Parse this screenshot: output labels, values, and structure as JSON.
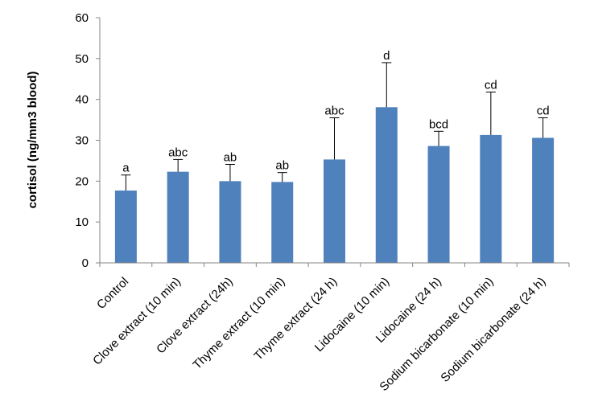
{
  "chart_data": {
    "type": "bar",
    "title": "",
    "xlabel": "",
    "ylabel": "cortisol (ng/mm3 blood)",
    "ylim": [
      0,
      60
    ],
    "yticks": [
      0,
      10,
      20,
      30,
      40,
      50,
      60
    ],
    "grid": false,
    "legend": "none",
    "bar_color": "#4F81BD",
    "categories": [
      "Control",
      "Clove extract (10 min)",
      "Clove extract (24h)",
      "Thyme extract (10 min)",
      "Thyme extract (24 h)",
      "Lidocaine (10 min)",
      "Lidocaine (24 h)",
      "Sodium bicarbonate (10 min)",
      "Sodium bicarbonate (24 h)"
    ],
    "values": [
      17.7,
      22.3,
      20.0,
      19.8,
      25.3,
      38.1,
      28.6,
      31.3,
      30.6
    ],
    "error_upper": [
      3.8,
      3.0,
      4.1,
      2.3,
      10.2,
      10.9,
      3.6,
      10.5,
      4.9
    ],
    "significance_labels": [
      "a",
      "abc",
      "ab",
      "ab",
      "abc",
      "d",
      "bcd",
      "cd",
      "cd"
    ]
  }
}
